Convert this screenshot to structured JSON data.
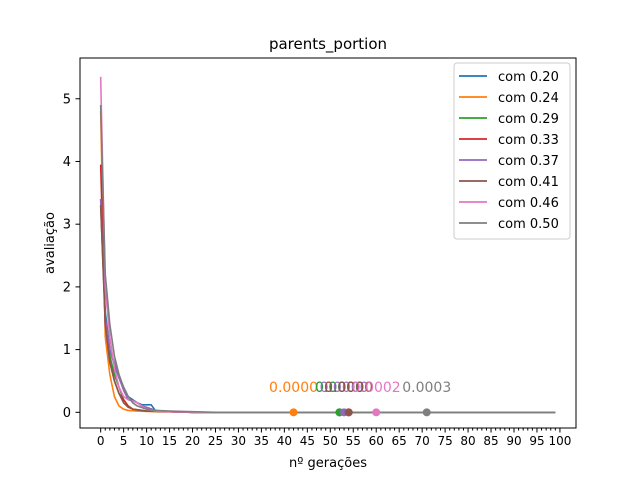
{
  "chart_data": {
    "type": "line",
    "title": "parents_portion",
    "xlabel": "nº gerações",
    "ylabel": "avaliação",
    "xlim": [
      -4.5,
      103.5
    ],
    "ylim": [
      -0.25,
      5.65
    ],
    "xticks": [
      0,
      5,
      10,
      15,
      20,
      25,
      30,
      35,
      40,
      45,
      50,
      55,
      60,
      65,
      70,
      75,
      80,
      85,
      90,
      95,
      100
    ],
    "yticks": [
      0,
      1,
      2,
      3,
      4,
      5
    ],
    "x_minor_step": 1,
    "grid": false,
    "legend_position": "top-right",
    "series": [
      {
        "name": "com 0.20",
        "color": "#1f77b4",
        "points": [
          [
            0,
            3.4
          ],
          [
            1,
            1.6
          ],
          [
            2,
            1.0
          ],
          [
            3,
            0.75
          ],
          [
            4,
            0.55
          ],
          [
            5,
            0.4
          ],
          [
            6,
            0.25
          ],
          [
            7,
            0.2
          ],
          [
            8,
            0.15
          ],
          [
            9,
            0.12
          ],
          [
            10,
            0.12
          ],
          [
            11,
            0.12
          ],
          [
            12,
            0.02
          ],
          [
            15,
            0.01
          ],
          [
            20,
            0.0
          ],
          [
            52,
            0.0
          ],
          [
            99,
            0.0
          ]
        ],
        "marker": [
          52,
          0.0
        ],
        "annotation": "0.0000"
      },
      {
        "name": "com 0.24",
        "color": "#ff7f0e",
        "points": [
          [
            0,
            4.8
          ],
          [
            1,
            1.2
          ],
          [
            2,
            0.6
          ],
          [
            3,
            0.25
          ],
          [
            4,
            0.1
          ],
          [
            5,
            0.05
          ],
          [
            6,
            0.03
          ],
          [
            8,
            0.02
          ],
          [
            12,
            0.01
          ],
          [
            20,
            0.0
          ],
          [
            42,
            0.0
          ],
          [
            99,
            0.0
          ]
        ],
        "marker": [
          42,
          0.0
        ],
        "annotation": "0.0000"
      },
      {
        "name": "com 0.29",
        "color": "#2ca02c",
        "points": [
          [
            0,
            3.3
          ],
          [
            1,
            1.5
          ],
          [
            2,
            0.9
          ],
          [
            3,
            0.6
          ],
          [
            4,
            0.4
          ],
          [
            5,
            0.2
          ],
          [
            6,
            0.1
          ],
          [
            7,
            0.05
          ],
          [
            10,
            0.02
          ],
          [
            15,
            0.01
          ],
          [
            20,
            0.0
          ],
          [
            52,
            0.0
          ],
          [
            99,
            0.0
          ]
        ],
        "marker": [
          52,
          0.0
        ],
        "annotation": "0.0000"
      },
      {
        "name": "com 0.33",
        "color": "#d62728",
        "points": [
          [
            0,
            3.95
          ],
          [
            1,
            1.4
          ],
          [
            2,
            0.8
          ],
          [
            3,
            0.5
          ],
          [
            4,
            0.3
          ],
          [
            5,
            0.2
          ],
          [
            6,
            0.1
          ],
          [
            7,
            0.05
          ],
          [
            10,
            0.02
          ],
          [
            15,
            0.01
          ],
          [
            20,
            0.0
          ],
          [
            54,
            0.0
          ],
          [
            99,
            0.0
          ]
        ],
        "marker": [
          54,
          0.0
        ],
        "annotation": "0.0000"
      },
      {
        "name": "com 0.37",
        "color": "#9467bd",
        "points": [
          [
            0,
            3.4
          ],
          [
            1,
            1.5
          ],
          [
            2,
            1.0
          ],
          [
            3,
            0.8
          ],
          [
            4,
            0.55
          ],
          [
            5,
            0.35
          ],
          [
            6,
            0.2
          ],
          [
            7,
            0.18
          ],
          [
            8,
            0.15
          ],
          [
            9,
            0.1
          ],
          [
            10,
            0.08
          ],
          [
            12,
            0.03
          ],
          [
            15,
            0.01
          ],
          [
            20,
            0.0
          ],
          [
            53,
            0.0
          ],
          [
            99,
            0.0
          ]
        ],
        "marker": [
          53,
          0.0
        ],
        "annotation": "0.0000"
      },
      {
        "name": "com 0.41",
        "color": "#8c564b",
        "points": [
          [
            0,
            3.3
          ],
          [
            1,
            1.4
          ],
          [
            2,
            0.8
          ],
          [
            3,
            0.5
          ],
          [
            4,
            0.3
          ],
          [
            5,
            0.15
          ],
          [
            6,
            0.08
          ],
          [
            7,
            0.05
          ],
          [
            10,
            0.02
          ],
          [
            15,
            0.01
          ],
          [
            20,
            0.0
          ],
          [
            54,
            0.0
          ],
          [
            99,
            0.0
          ]
        ],
        "marker": [
          54,
          0.0
        ],
        "annotation": "0.0000"
      },
      {
        "name": "com 0.46",
        "color": "#e377c2",
        "points": [
          [
            0,
            5.35
          ],
          [
            1,
            2.0
          ],
          [
            2,
            1.2
          ],
          [
            3,
            0.7
          ],
          [
            4,
            0.4
          ],
          [
            5,
            0.25
          ],
          [
            6,
            0.2
          ],
          [
            7,
            0.18
          ],
          [
            8,
            0.15
          ],
          [
            9,
            0.1
          ],
          [
            10,
            0.05
          ],
          [
            12,
            0.02
          ],
          [
            15,
            0.01
          ],
          [
            22,
            0.0
          ],
          [
            60,
            0.0
          ],
          [
            99,
            0.0
          ]
        ],
        "marker": [
          60,
          0.0
        ],
        "annotation": "0.0002"
      },
      {
        "name": "com 0.50",
        "color": "#7f7f7f",
        "points": [
          [
            0,
            4.9
          ],
          [
            1,
            2.2
          ],
          [
            2,
            1.4
          ],
          [
            3,
            0.9
          ],
          [
            4,
            0.6
          ],
          [
            5,
            0.4
          ],
          [
            6,
            0.25
          ],
          [
            7,
            0.15
          ],
          [
            8,
            0.1
          ],
          [
            10,
            0.05
          ],
          [
            12,
            0.03
          ],
          [
            15,
            0.02
          ],
          [
            20,
            0.01
          ],
          [
            25,
            0.0
          ],
          [
            71,
            0.0
          ],
          [
            99,
            0.0
          ]
        ],
        "marker": [
          71,
          0.0
        ],
        "annotation": "0.0003"
      }
    ]
  }
}
